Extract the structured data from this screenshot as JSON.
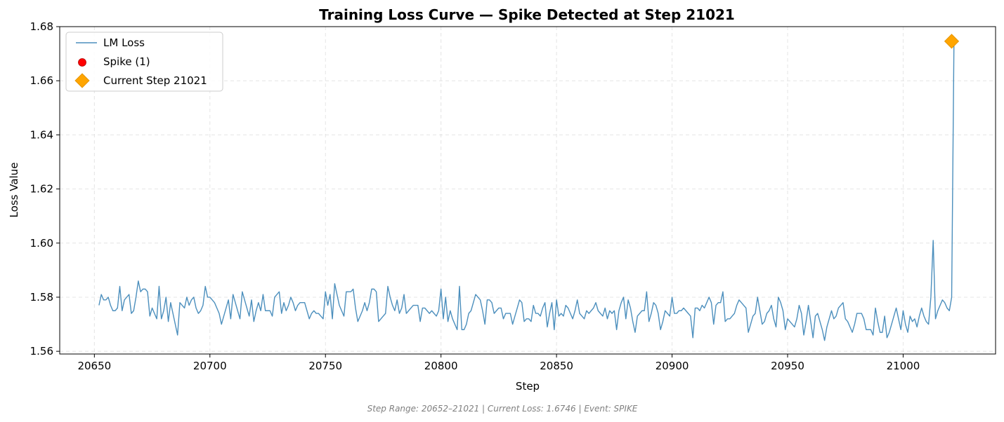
{
  "chart_data": {
    "type": "line",
    "title": "Training Loss Curve — Spike Detected at Step 21021",
    "xlabel": "Step",
    "ylabel": "Loss Value",
    "xlim": [
      20635,
      21040
    ],
    "ylim": [
      1.559,
      1.68
    ],
    "xticks": [
      20650,
      20700,
      20750,
      20800,
      20850,
      20900,
      20950,
      21000
    ],
    "yticks": [
      1.56,
      1.58,
      1.6,
      1.62,
      1.64,
      1.66,
      1.68
    ],
    "ytick_decimals": 2,
    "grid": true,
    "legend_position": "top-left",
    "series": [
      {
        "name": "LM Loss",
        "color": "#4c8fbd",
        "x_start": 20652,
        "x_step": 1,
        "values": [
          1.577,
          1.581,
          1.579,
          1.579,
          1.58,
          1.577,
          1.575,
          1.575,
          1.576,
          1.584,
          1.575,
          1.579,
          1.58,
          1.581,
          1.574,
          1.575,
          1.58,
          1.586,
          1.582,
          1.583,
          1.583,
          1.582,
          1.573,
          1.576,
          1.574,
          1.572,
          1.584,
          1.572,
          1.575,
          1.58,
          1.571,
          1.578,
          1.574,
          1.57,
          1.566,
          1.578,
          1.577,
          1.576,
          1.58,
          1.577,
          1.579,
          1.58,
          1.576,
          1.574,
          1.575,
          1.577,
          1.584,
          1.58,
          1.58,
          1.579,
          1.578,
          1.576,
          1.574,
          1.57,
          1.573,
          1.576,
          1.579,
          1.572,
          1.581,
          1.578,
          1.575,
          1.572,
          1.582,
          1.579,
          1.576,
          1.573,
          1.579,
          1.571,
          1.575,
          1.578,
          1.575,
          1.581,
          1.575,
          1.575,
          1.575,
          1.573,
          1.58,
          1.581,
          1.582,
          1.574,
          1.578,
          1.575,
          1.577,
          1.58,
          1.578,
          1.575,
          1.577,
          1.578,
          1.578,
          1.578,
          1.575,
          1.572,
          1.574,
          1.575,
          1.574,
          1.574,
          1.573,
          1.572,
          1.582,
          1.577,
          1.581,
          1.572,
          1.585,
          1.581,
          1.577,
          1.575,
          1.573,
          1.582,
          1.582,
          1.582,
          1.583,
          1.576,
          1.571,
          1.573,
          1.575,
          1.578,
          1.575,
          1.578,
          1.583,
          1.583,
          1.582,
          1.571,
          1.572,
          1.573,
          1.574,
          1.584,
          1.58,
          1.577,
          1.575,
          1.579,
          1.574,
          1.576,
          1.581,
          1.574,
          1.575,
          1.576,
          1.577,
          1.577,
          1.577,
          1.571,
          1.576,
          1.576,
          1.575,
          1.574,
          1.575,
          1.574,
          1.573,
          1.575,
          1.583,
          1.572,
          1.58,
          1.571,
          1.575,
          1.572,
          1.57,
          1.568,
          1.584,
          1.568,
          1.568,
          1.57,
          1.574,
          1.575,
          1.578,
          1.581,
          1.58,
          1.579,
          1.575,
          1.57,
          1.579,
          1.579,
          1.578,
          1.574,
          1.575,
          1.576,
          1.576,
          1.572,
          1.574,
          1.574,
          1.574,
          1.57,
          1.573,
          1.576,
          1.579,
          1.578,
          1.571,
          1.572,
          1.572,
          1.571,
          1.577,
          1.574,
          1.574,
          1.573,
          1.576,
          1.578,
          1.569,
          1.574,
          1.578,
          1.568,
          1.579,
          1.573,
          1.574,
          1.573,
          1.577,
          1.576,
          1.574,
          1.572,
          1.575,
          1.579,
          1.574,
          1.573,
          1.572,
          1.575,
          1.574,
          1.575,
          1.576,
          1.578,
          1.575,
          1.574,
          1.573,
          1.576,
          1.572,
          1.575,
          1.574,
          1.575,
          1.568,
          1.575,
          1.578,
          1.58,
          1.572,
          1.579,
          1.576,
          1.571,
          1.567,
          1.573,
          1.574,
          1.575,
          1.575,
          1.582,
          1.571,
          1.574,
          1.578,
          1.577,
          1.574,
          1.568,
          1.571,
          1.575,
          1.574,
          1.573,
          1.58,
          1.574,
          1.574,
          1.575,
          1.575,
          1.576,
          1.575,
          1.574,
          1.573,
          1.565,
          1.576,
          1.576,
          1.575,
          1.577,
          1.576,
          1.578,
          1.58,
          1.578,
          1.57,
          1.577,
          1.578,
          1.578,
          1.582,
          1.571,
          1.572,
          1.572,
          1.573,
          1.574,
          1.577,
          1.579,
          1.578,
          1.577,
          1.576,
          1.567,
          1.57,
          1.573,
          1.574,
          1.58,
          1.575,
          1.57,
          1.571,
          1.574,
          1.575,
          1.577,
          1.572,
          1.569,
          1.58,
          1.578,
          1.575,
          1.568,
          1.572,
          1.571,
          1.57,
          1.569,
          1.572,
          1.577,
          1.574,
          1.566,
          1.571,
          1.577,
          1.571,
          1.565,
          1.573,
          1.574,
          1.571,
          1.568,
          1.564,
          1.569,
          1.572,
          1.575,
          1.572,
          1.573,
          1.576,
          1.577,
          1.578,
          1.572,
          1.571,
          1.569,
          1.567,
          1.57,
          1.574,
          1.574,
          1.574,
          1.572,
          1.568,
          1.568,
          1.568,
          1.566,
          1.576,
          1.571,
          1.567,
          1.567,
          1.573,
          1.565,
          1.567,
          1.57,
          1.573,
          1.576,
          1.572,
          1.568,
          1.575,
          1.57,
          1.567,
          1.573,
          1.571,
          1.572,
          1.569,
          1.573,
          1.576,
          1.573,
          1.571,
          1.57,
          1.58,
          1.601,
          1.572,
          1.575,
          1.577,
          1.579,
          1.578,
          1.576,
          1.575,
          1.58,
          1.6746
        ]
      }
    ],
    "spike": {
      "name": "Spike (1)",
      "color": "#ff0000",
      "x": 21011,
      "y": 1.601
    },
    "current": {
      "name": "Current Step 21021",
      "color": "#ffa500",
      "x": 21021,
      "y": 1.6746
    }
  },
  "footer": "Step Range: 20652–21021 | Current Loss: 1.6746 | Event: SPIKE"
}
